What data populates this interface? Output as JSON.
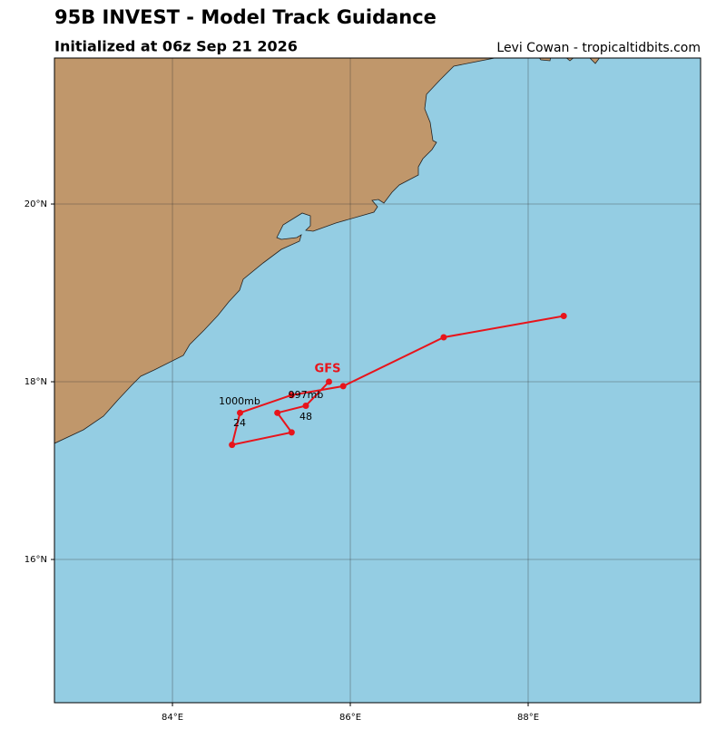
{
  "header": {
    "title": "95B INVEST - Model Track Guidance",
    "subtitle": "Initialized at 06z Sep 21 2026",
    "credit": "Levi Cowan - tropicaltidbits.com"
  },
  "map": {
    "lonlim": [
      82.673,
      89.939
    ],
    "latlim": [
      14.388,
      21.643
    ],
    "lonticks": [
      {
        "value": 84,
        "label": "84°E"
      },
      {
        "value": 86,
        "label": "86°E"
      },
      {
        "value": 88,
        "label": "88°E"
      }
    ],
    "latticks": [
      {
        "value": 16,
        "label": "16°N"
      },
      {
        "value": 18,
        "label": "18°N"
      },
      {
        "value": 20,
        "label": "20°N"
      }
    ],
    "track": {
      "name": "GFS",
      "color": "#e8141b",
      "lon": [
        85.76,
        85.5,
        85.18,
        85.34,
        84.67,
        84.76,
        85.34,
        85.92,
        87.05,
        88.4
      ],
      "lat": [
        18.0,
        17.73,
        17.65,
        17.43,
        17.29,
        17.65,
        17.85,
        17.95,
        18.5,
        18.74
      ]
    },
    "annotations": [
      "1000mb",
      "997mb",
      "24",
      "48"
    ]
  }
}
